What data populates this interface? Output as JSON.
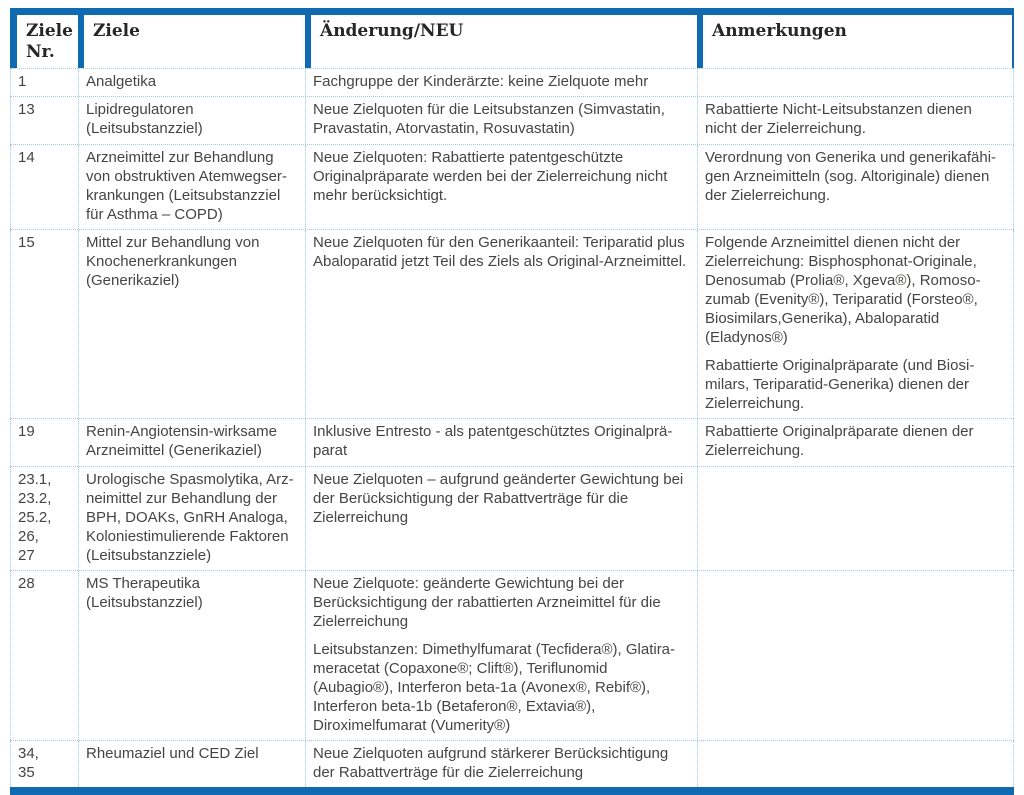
{
  "table": {
    "accent_color": "#0f6ab1",
    "grid_color": "#a5c6e0",
    "columns": [
      "Ziele Nr.",
      "Ziele",
      "Änderung/NEU",
      "Anmerkungen"
    ],
    "rows": [
      {
        "nr": "1",
        "ziel": "Analgetika",
        "aenderung": [
          "Fachgruppe der Kinderärzte: keine Zielquote mehr"
        ],
        "anmerkungen": []
      },
      {
        "nr": "13",
        "ziel": "Lipidregulatoren (Leitsubstanzziel)",
        "aenderung": [
          "Neue Zielquoten für die Leitsubstanzen (Simvastatin, Pravastatin, Atorvastatin, Rosuvastatin)"
        ],
        "anmerkungen": [
          "Rabattierte Nicht-Leitsubstanzen dienen nicht der Zielerreichung."
        ]
      },
      {
        "nr": "14",
        "ziel": "Arzneimittel zur Behandlung von obstruktiven Atemwegser­krankungen (Leitsubstanzziel für Asthma – COPD)",
        "aenderung": [
          "Neue Zielquoten: Rabattierte patentgeschützte Originalpräparate werden bei der Zielerreichung nicht mehr berücksichtigt."
        ],
        "anmerkungen": [
          "Verordnung von Generika und generikafähi­gen Arzneimitteln (sog. Altoriginale) dienen der Zielerreichung."
        ]
      },
      {
        "nr": "15",
        "ziel": "Mittel zur Behandlung von Knochenerkrankungen (Generikaziel)",
        "aenderung": [
          "Neue Zielquoten für den Generikaanteil: Teriparatid plus Abaloparatid jetzt Teil des Ziels als Original-Arzneimittel."
        ],
        "anmerkungen": [
          "Folgende Arzneimittel dienen nicht der Zielerreichung: Bisphosphonat-Originale, Denosumab (Prolia®, Xgeva®), Romoso­zumab (Evenity®), Teriparatid (Forsteo®, Biosimilars,Generika), Abaloparatid (Eladynos®)",
          "Rabattierte Originalpräparate (und Biosi­milars, Teriparatid-Generika) dienen der Zielerreichung."
        ]
      },
      {
        "nr": "19",
        "ziel": "Renin-Angiotensin-wirksame Arzneimittel (Generikaziel)",
        "aenderung": [
          "Inklusive Entresto - als patentgeschütztes Originalprä­parat"
        ],
        "anmerkungen": [
          "Rabattierte Originalpräparate dienen der Zielerreichung."
        ]
      },
      {
        "nr": "23.1,\n23.2,\n25.2,\n26,\n27",
        "ziel": "Urologische Spasmolytika, Arz­neimittel zur Behandlung der BPH, DOAKs, GnRH Analoga, Koloniestimulierende Faktoren (Leitsubstanzziele)",
        "aenderung": [
          "Neue Zielquoten – aufgrund geänderter Gewichtung bei der Berücksichtigung der Rabattverträge für die Zielerreichung"
        ],
        "anmerkungen": []
      },
      {
        "nr": "28",
        "ziel": "MS Therapeutika (Leitsubstanzziel)",
        "aenderung": [
          "Neue Zielquote: geänderte Gewichtung bei der Berücksichtigung der rabattierten Arzneimittel für die Zielerreichung",
          "Leitsubstanzen: Dimethylfumarat (Tecfidera®), Glatira­meracetat (Copaxone®; Clift®), Teriflunomid (Aubagio®), Interferon beta-1a (Avonex®, Rebif®), Interferon beta-1b (Betaferon®, Extavia®), Diroximelfumarat (Vumerity®)"
        ],
        "anmerkungen": []
      },
      {
        "nr": "34,\n35",
        "ziel": "Rheumaziel und CED Ziel",
        "aenderung": [
          "Neue Zielquoten aufgrund stärkerer Berücksichtigung der Rabattverträge für die Zielerreichung"
        ],
        "anmerkungen": []
      }
    ]
  }
}
